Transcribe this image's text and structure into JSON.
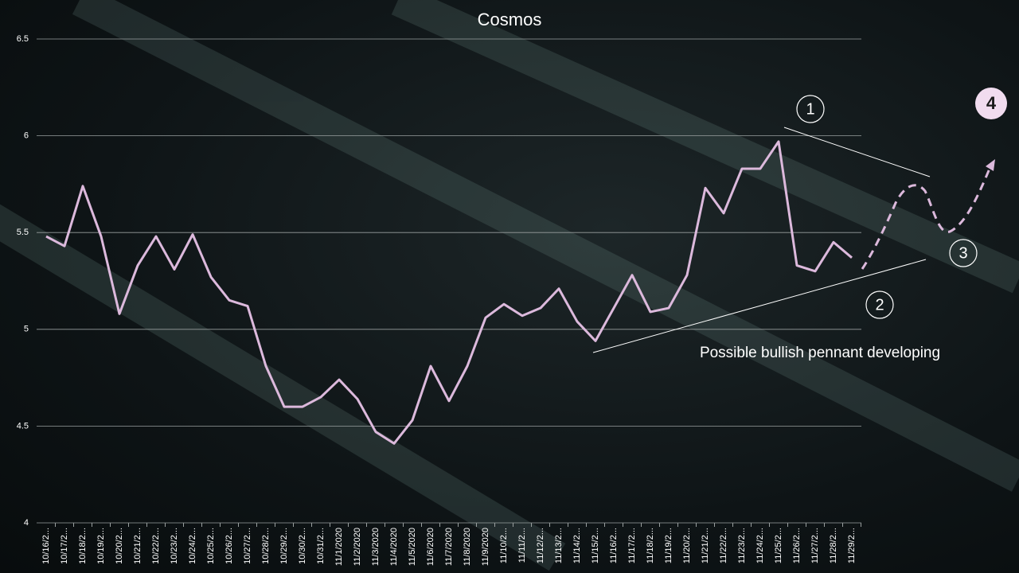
{
  "chart_data": {
    "type": "line",
    "title": "Cosmos",
    "categories": [
      "10/16/2...",
      "10/17/2...",
      "10/18/2...",
      "10/19/2...",
      "10/20/2...",
      "10/21/2...",
      "10/22/2...",
      "10/23/2...",
      "10/24/2...",
      "10/25/2...",
      "10/26/2...",
      "10/27/2...",
      "10/28/2...",
      "10/29/2...",
      "10/30/2...",
      "10/31/2...",
      "11/1/2020",
      "11/2/2020",
      "11/3/2020",
      "11/4/2020",
      "11/5/2020",
      "11/6/2020",
      "11/7/2020",
      "11/8/2020",
      "11/9/2020",
      "11/10/2...",
      "11/11/2...",
      "11/12/2...",
      "11/13/2...",
      "11/14/2...",
      "11/15/2...",
      "11/16/2...",
      "11/17/2...",
      "11/18/2...",
      "11/19/2...",
      "11/20/2...",
      "11/21/2...",
      "11/22/2...",
      "11/23/2...",
      "11/24/2...",
      "11/25/2...",
      "11/26/2...",
      "11/27/2...",
      "11/28/2...",
      "11/29/2..."
    ],
    "series": [
      {
        "color": "#dcb9dc",
        "values": [
          5.48,
          5.43,
          5.74,
          5.48,
          5.08,
          5.33,
          5.48,
          5.31,
          5.49,
          5.27,
          5.15,
          5.12,
          4.81,
          4.6,
          4.6,
          4.65,
          4.74,
          4.64,
          4.47,
          4.41,
          4.53,
          4.81,
          4.63,
          4.81,
          5.06,
          5.13,
          5.07,
          5.11,
          5.21,
          5.04,
          4.94,
          5.11,
          5.28,
          5.09,
          5.11,
          5.28,
          5.73,
          5.6,
          5.83,
          5.83,
          5.97,
          5.33,
          5.3,
          5.45,
          5.37
        ]
      }
    ],
    "ylim": [
      4,
      6.5
    ],
    "yticks": [
      4,
      4.5,
      5,
      5.5,
      6,
      6.5
    ],
    "grid": true,
    "annotations": [
      "1",
      "2",
      "3",
      "4",
      "Possible bullish pennant developing"
    ]
  }
}
